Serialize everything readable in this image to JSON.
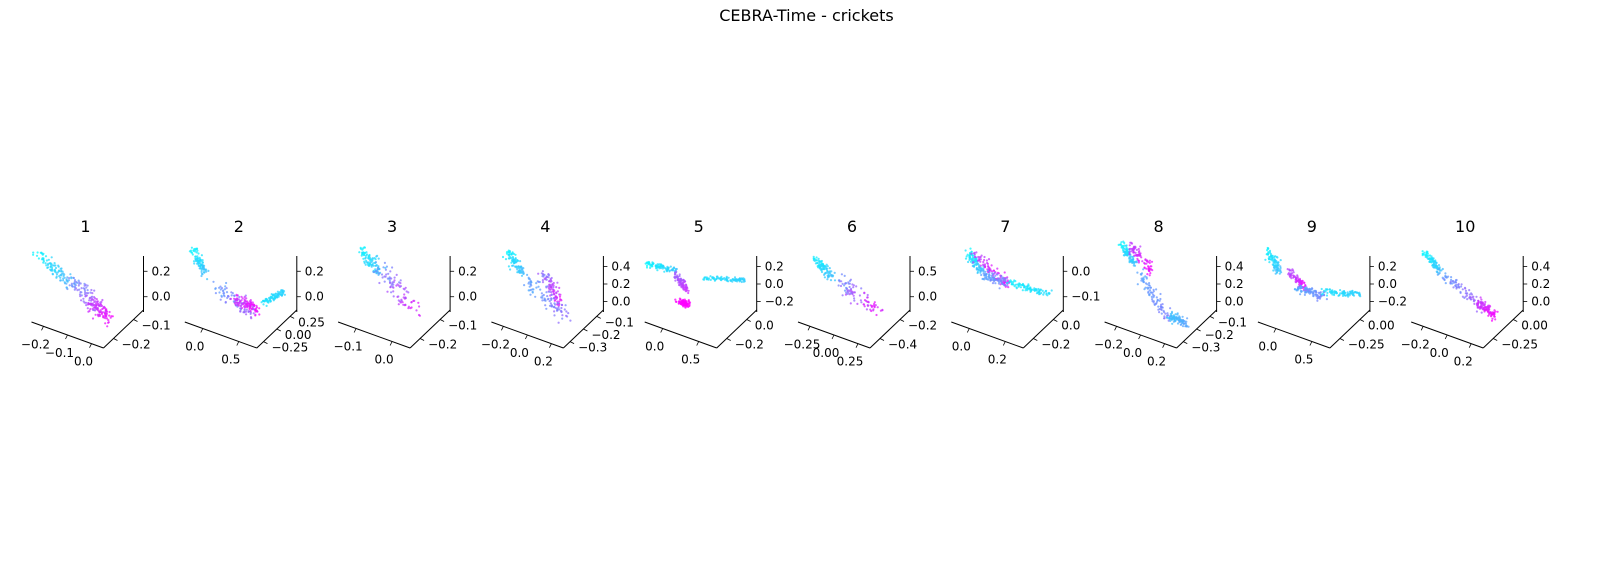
{
  "figure": {
    "title": "CEBRA-Time - crickets"
  },
  "colors": {
    "colormap": "cool",
    "low": "#00ffff",
    "high": "#ff00ff",
    "axis": "#000000",
    "background": "#ffffff"
  },
  "chart_data": [
    {
      "type": "scatter",
      "projection": "3d",
      "title": "1",
      "x_ticks": [
        "−0.2",
        "−0.1",
        "0.0"
      ],
      "y_ticks": [
        "−0.1",
        "−0.2"
      ],
      "z_ticks": [
        "0.2",
        "0.0"
      ],
      "grid": false,
      "legend": "none"
    },
    {
      "type": "scatter",
      "projection": "3d",
      "title": "2",
      "x_ticks": [
        "0.0",
        "0.5"
      ],
      "y_ticks": [
        "0.25",
        "0.00",
        "−0.25"
      ],
      "z_ticks": [
        "0.2",
        "0.0"
      ],
      "grid": false,
      "legend": "none"
    },
    {
      "type": "scatter",
      "projection": "3d",
      "title": "3",
      "x_ticks": [
        "−0.1",
        "0.0"
      ],
      "y_ticks": [
        "−0.1",
        "−0.2"
      ],
      "z_ticks": [
        "0.2",
        "0.0"
      ],
      "grid": false,
      "legend": "none"
    },
    {
      "type": "scatter",
      "projection": "3d",
      "title": "4",
      "x_ticks": [
        "−0.2",
        "0.0",
        "0.2"
      ],
      "y_ticks": [
        "−0.1",
        "−0.2",
        "−0.3"
      ],
      "z_ticks": [
        "0.4",
        "0.2",
        "0.0"
      ],
      "grid": false,
      "legend": "none"
    },
    {
      "type": "scatter",
      "projection": "3d",
      "title": "5",
      "x_ticks": [
        "0.0",
        "0.5"
      ],
      "y_ticks": [
        "0.0",
        "−0.2"
      ],
      "z_ticks": [
        "0.2",
        "0.0",
        "−0.2"
      ],
      "grid": false,
      "legend": "none"
    },
    {
      "type": "scatter",
      "projection": "3d",
      "title": "6",
      "x_ticks": [
        "−0.25",
        "0.00",
        "0.25"
      ],
      "y_ticks": [
        "−0.2",
        "−0.4"
      ],
      "z_ticks": [
        "0.5",
        "0.0"
      ],
      "grid": false,
      "legend": "none"
    },
    {
      "type": "scatter",
      "projection": "3d",
      "title": "7",
      "x_ticks": [
        "0.0",
        "0.2"
      ],
      "y_ticks": [
        "0.0",
        "−0.2"
      ],
      "z_ticks": [
        "0.0",
        "−0.1"
      ],
      "grid": false,
      "legend": "none"
    },
    {
      "type": "scatter",
      "projection": "3d",
      "title": "8",
      "x_ticks": [
        "−0.2",
        "0.0",
        "0.2"
      ],
      "y_ticks": [
        "−0.1",
        "−0.2",
        "−0.3"
      ],
      "z_ticks": [
        "0.4",
        "0.2",
        "0.0"
      ],
      "grid": false,
      "legend": "none"
    },
    {
      "type": "scatter",
      "projection": "3d",
      "title": "9",
      "x_ticks": [
        "0.0",
        "0.5"
      ],
      "y_ticks": [
        "0.00",
        "−0.25"
      ],
      "z_ticks": [
        "0.2",
        "0.0",
        "−0.2"
      ],
      "grid": false,
      "legend": "none"
    },
    {
      "type": "scatter",
      "projection": "3d",
      "title": "10",
      "x_ticks": [
        "−0.2",
        "0.0",
        "0.2"
      ],
      "y_ticks": [
        "0.00",
        "−0.25"
      ],
      "z_ticks": [
        "0.4",
        "0.2",
        "0.0"
      ],
      "grid": false,
      "legend": "none"
    }
  ]
}
